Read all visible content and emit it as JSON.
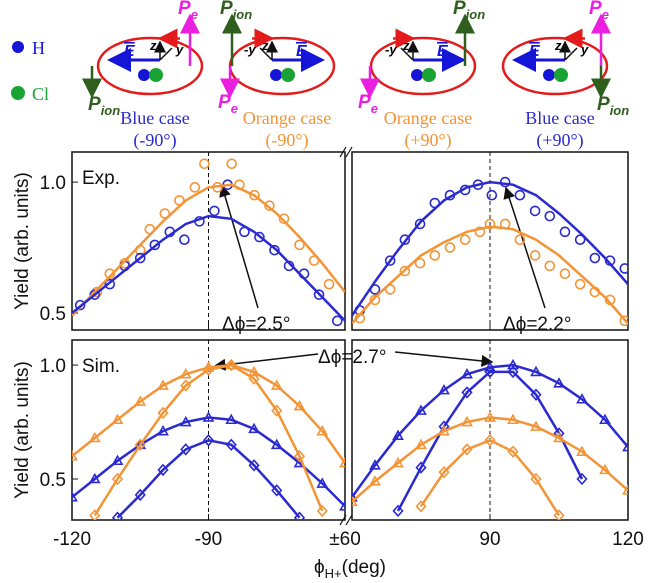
{
  "schematic": {
    "h_label": "H",
    "cl_label": "Cl",
    "p_symbol": "P",
    "e_sub": "e",
    "ion_sub": "ion",
    "e_field": "E",
    "z_axis": "z",
    "y_axis": "y",
    "neg_y_axis": "-y",
    "cases": [
      {
        "name": "Blue case",
        "angle": "(-90°)",
        "color": "#2a2ad0"
      },
      {
        "name": "Orange case",
        "angle": "(-90°)",
        "color": "#f39436"
      },
      {
        "name": "Orange case",
        "angle": "(+90°)",
        "color": "#f39436"
      },
      {
        "name": "Blue case",
        "angle": "(+90°)",
        "color": "#2a2ad0"
      }
    ]
  },
  "chart_data": [
    {
      "type": "line",
      "label": "Exp.",
      "y_label": "Yield (arb. units)",
      "annotation": "Δϕ=2.5°",
      "guide_x": -90,
      "xlim": [
        -120,
        -60
      ],
      "xticks": [
        -120,
        -90,
        {
          "value": -60,
          "label": "±60"
        }
      ],
      "show_xtick_labels": false,
      "ylim": [
        0.435,
        1.115
      ],
      "yticks": [
        0.5,
        {
          "value": 1,
          "label": "1.0"
        }
      ],
      "series": [
        {
          "color": "#f39436",
          "marker": "circle",
          "line": false,
          "x": [
            -114.5,
            -111.7,
            -108.4,
            -105,
            -102.9,
            -99.6,
            -96.4,
            -93,
            -90.9,
            -88,
            -84.9,
            -83.2,
            -79.9,
            -76.6,
            -73.4,
            -70,
            -66.8,
            -63.5
          ],
          "values": [
            0.58,
            0.65,
            0.69,
            0.74,
            0.82,
            0.88,
            0.93,
            0.98,
            1.07,
            0.98,
            1.07,
            0.99,
            0.95,
            0.91,
            0.86,
            0.76,
            0.7,
            0.61
          ]
        },
        {
          "color": "#2a2ad0",
          "marker": "circle",
          "line": false,
          "x": [
            -118.2,
            -115,
            -111.7,
            -108.4,
            -105,
            -101.8,
            -98.5,
            -95.3,
            -92,
            -88.7,
            -85.8,
            -82.1,
            -78.8,
            -75.5,
            -72.3,
            -69,
            -65.7,
            -61.7
          ],
          "values": [
            0.53,
            0.57,
            0.61,
            0.68,
            0.71,
            0.76,
            0.81,
            0.78,
            0.85,
            0.89,
            0.99,
            0.81,
            0.79,
            0.74,
            0.68,
            0.65,
            0.57,
            0.47
          ]
        },
        {
          "color": "#f39436",
          "marker": null,
          "line": true,
          "x": [
            -120,
            -115,
            -110,
            -105,
            -100,
            -95,
            -90,
            -85,
            -80,
            -75,
            -70,
            -65,
            -60
          ],
          "values": [
            0.49,
            0.58,
            0.67,
            0.76,
            0.85,
            0.93,
            0.98,
            0.99,
            0.95,
            0.88,
            0.79,
            0.69,
            0.58
          ]
        },
        {
          "color": "#2a2ad0",
          "marker": null,
          "line": true,
          "x": [
            -120,
            -115,
            -110,
            -105,
            -100,
            -95,
            -90,
            -85,
            -80,
            -75,
            -70,
            -65,
            -60
          ],
          "values": [
            0.5,
            0.57,
            0.64,
            0.71,
            0.78,
            0.84,
            0.87,
            0.86,
            0.81,
            0.74,
            0.65,
            0.56,
            0.47
          ]
        }
      ]
    },
    {
      "type": "line",
      "annotation": "Δϕ=2.2°",
      "guide_x": 90,
      "xlim": [
        60,
        120
      ],
      "xticks": [
        90,
        120
      ],
      "show_xtick_labels": false,
      "ylim": [
        0.435,
        1.115
      ],
      "series": [
        {
          "color": "#2a2ad0",
          "marker": "circle",
          "line": false,
          "x": [
            61.7,
            65,
            68.3,
            71.5,
            74.8,
            78,
            81.3,
            84.6,
            87.4,
            90.4,
            93.3,
            96.5,
            99.8,
            103,
            106.3,
            109.6,
            112.8,
            116.1,
            119.3
          ],
          "values": [
            0.51,
            0.59,
            0.7,
            0.78,
            0.84,
            0.92,
            0.95,
            0.97,
            0.99,
            0.95,
            1.0,
            0.95,
            0.89,
            0.87,
            0.81,
            0.78,
            0.71,
            0.7,
            0.67
          ]
        },
        {
          "color": "#f39436",
          "marker": "circle",
          "line": false,
          "x": [
            61.7,
            65,
            68.3,
            71.5,
            74.8,
            78,
            81.3,
            84.6,
            87.8,
            90,
            93.3,
            96.5,
            99.8,
            103,
            106.3,
            109.6,
            112.8,
            116.1,
            119.3
          ],
          "values": [
            0.48,
            0.55,
            0.59,
            0.66,
            0.69,
            0.72,
            0.75,
            0.78,
            0.81,
            0.84,
            0.84,
            0.78,
            0.72,
            0.68,
            0.65,
            0.61,
            0.58,
            0.55,
            0.47
          ]
        },
        {
          "color": "#2a2ad0",
          "marker": null,
          "line": true,
          "x": [
            60,
            65,
            70,
            75,
            80,
            85,
            90,
            95,
            100,
            105,
            110,
            115,
            120
          ],
          "values": [
            0.49,
            0.62,
            0.74,
            0.85,
            0.93,
            0.98,
            1.0,
            0.99,
            0.95,
            0.88,
            0.8,
            0.71,
            0.61
          ]
        },
        {
          "color": "#f39436",
          "marker": null,
          "line": true,
          "x": [
            60,
            65,
            70,
            75,
            80,
            85,
            90,
            95,
            100,
            105,
            110,
            115,
            120
          ],
          "values": [
            0.46,
            0.56,
            0.64,
            0.72,
            0.77,
            0.81,
            0.83,
            0.82,
            0.78,
            0.72,
            0.64,
            0.56,
            0.46
          ]
        }
      ]
    },
    {
      "type": "line",
      "label": "Sim.",
      "y_label": "Yield (arb. units)",
      "annotation": "Δϕ=2.7°",
      "guide_x": -90,
      "x_label": [
        "ϕ",
        "H+",
        "(deg)"
      ],
      "xlim": [
        -120,
        -60
      ],
      "xticks": [
        -120,
        -90,
        {
          "value": -60,
          "label": "±60"
        }
      ],
      "ylim": [
        0.32,
        1.11
      ],
      "yticks": [
        0.5,
        {
          "value": 1,
          "label": "1.0"
        }
      ],
      "series": [
        {
          "color": "#f39436",
          "marker": "triangle",
          "line": true,
          "x": [
            -120,
            -115,
            -110,
            -105,
            -100,
            -95,
            -90,
            -85,
            -80,
            -75,
            -70,
            -65,
            -60
          ],
          "values": [
            0.6,
            0.68,
            0.76,
            0.84,
            0.91,
            0.96,
            0.99,
            1.0,
            0.97,
            0.91,
            0.82,
            0.71,
            0.57
          ]
        },
        {
          "color": "#2a2ad0",
          "marker": "triangle",
          "line": true,
          "x": [
            -120,
            -115,
            -110,
            -105,
            -100,
            -95,
            -90,
            -85,
            -80,
            -75,
            -70,
            -65,
            -60
          ],
          "values": [
            0.42,
            0.5,
            0.58,
            0.65,
            0.71,
            0.75,
            0.77,
            0.76,
            0.72,
            0.65,
            0.57,
            0.48,
            0.38
          ]
        },
        {
          "color": "#f39436",
          "marker": "diamond",
          "line": true,
          "x": [
            -115,
            -110,
            -105,
            -100,
            -95,
            -90,
            -85,
            -80,
            -75,
            -70,
            -65
          ],
          "values": [
            0.34,
            0.5,
            0.65,
            0.79,
            0.91,
            0.98,
            1.0,
            0.94,
            0.8,
            0.6,
            0.36
          ]
        },
        {
          "color": "#2a2ad0",
          "marker": "diamond",
          "line": true,
          "x": [
            -110,
            -105,
            -100,
            -95,
            -90,
            -85,
            -80,
            -75,
            -70
          ],
          "values": [
            0.33,
            0.43,
            0.54,
            0.63,
            0.67,
            0.65,
            0.56,
            0.45,
            0.33
          ]
        }
      ]
    },
    {
      "type": "line",
      "guide_x": 90,
      "xlim": [
        60,
        120
      ],
      "xticks": [
        90,
        120
      ],
      "ylim": [
        0.32,
        1.11
      ],
      "series": [
        {
          "color": "#2a2ad0",
          "marker": "triangle",
          "line": true,
          "x": [
            60,
            65,
            70,
            75,
            80,
            85,
            90,
            95,
            100,
            105,
            110,
            115,
            120
          ],
          "values": [
            0.42,
            0.56,
            0.69,
            0.8,
            0.89,
            0.96,
            0.99,
            1.0,
            0.97,
            0.92,
            0.85,
            0.76,
            0.64
          ]
        },
        {
          "color": "#2a2ad0",
          "marker": "diamond",
          "line": true,
          "x": [
            70,
            75,
            80,
            85,
            90,
            95,
            100,
            105,
            110
          ],
          "values": [
            0.36,
            0.55,
            0.73,
            0.88,
            0.97,
            0.97,
            0.87,
            0.7,
            0.5
          ]
        },
        {
          "color": "#f39436",
          "marker": "triangle",
          "line": true,
          "x": [
            60,
            65,
            70,
            75,
            80,
            85,
            90,
            95,
            100,
            105,
            110,
            115,
            120
          ],
          "values": [
            0.4,
            0.49,
            0.57,
            0.65,
            0.71,
            0.75,
            0.77,
            0.76,
            0.73,
            0.68,
            0.62,
            0.54,
            0.45
          ]
        },
        {
          "color": "#f39436",
          "marker": "diamond",
          "line": true,
          "x": [
            75,
            80,
            85,
            90,
            95,
            100,
            105
          ],
          "values": [
            0.38,
            0.53,
            0.63,
            0.67,
            0.62,
            0.5,
            0.34
          ]
        }
      ]
    }
  ]
}
